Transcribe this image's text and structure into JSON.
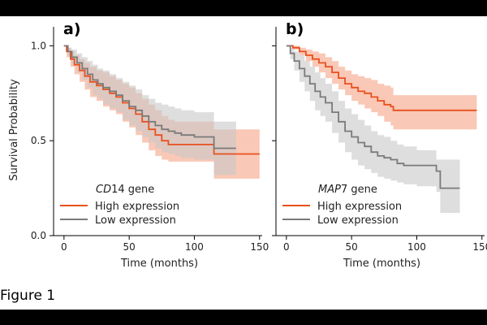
{
  "figure": {
    "caption": "Figure 1"
  },
  "colors": {
    "high": "#e8501e",
    "low": "#7a7a7a",
    "high_band": "#f7a485",
    "low_band": "#c8c8c8"
  },
  "chart_data": [
    {
      "type": "line",
      "panel_label": "a)",
      "title": "",
      "xlabel": "Time (months)",
      "ylabel": "Survival Probability",
      "xlim": [
        -8,
        152
      ],
      "ylim": [
        0,
        1.1
      ],
      "xticks": [
        0,
        50,
        100,
        150
      ],
      "yticks": [
        0.0,
        0.5,
        1.0
      ],
      "ytick_labels": [
        "0.0",
        "0.5",
        "1.0"
      ],
      "legend": {
        "title_italic": "CD",
        "title_rest": "14 gene",
        "position": "lower-left",
        "entries": [
          "High expression",
          "Low expression"
        ]
      },
      "series": [
        {
          "name": "High expression",
          "x": [
            0,
            2,
            5,
            8,
            12,
            16,
            20,
            25,
            30,
            35,
            40,
            45,
            50,
            55,
            60,
            65,
            70,
            75,
            80,
            85,
            90,
            100,
            110,
            115,
            120,
            130,
            150
          ],
          "y": [
            1.0,
            0.97,
            0.93,
            0.9,
            0.87,
            0.84,
            0.81,
            0.79,
            0.77,
            0.75,
            0.73,
            0.7,
            0.67,
            0.64,
            0.6,
            0.56,
            0.53,
            0.5,
            0.48,
            0.48,
            0.48,
            0.48,
            0.48,
            0.43,
            0.43,
            0.43,
            0.43
          ],
          "upper": [
            1.0,
            0.99,
            0.97,
            0.95,
            0.93,
            0.91,
            0.89,
            0.87,
            0.86,
            0.84,
            0.82,
            0.8,
            0.78,
            0.75,
            0.72,
            0.69,
            0.66,
            0.63,
            0.61,
            0.6,
            0.6,
            0.6,
            0.6,
            0.56,
            0.56,
            0.56,
            0.56
          ],
          "lower": [
            1.0,
            0.94,
            0.89,
            0.85,
            0.81,
            0.77,
            0.73,
            0.71,
            0.68,
            0.66,
            0.64,
            0.6,
            0.57,
            0.53,
            0.49,
            0.45,
            0.42,
            0.4,
            0.39,
            0.39,
            0.39,
            0.39,
            0.39,
            0.3,
            0.3,
            0.3,
            0.3
          ]
        },
        {
          "name": "Low expression",
          "x": [
            0,
            3,
            6,
            10,
            14,
            18,
            22,
            26,
            30,
            35,
            40,
            45,
            50,
            55,
            60,
            65,
            70,
            75,
            80,
            85,
            90,
            100,
            110,
            115,
            120,
            125,
            132
          ],
          "y": [
            1.0,
            0.97,
            0.94,
            0.91,
            0.88,
            0.85,
            0.82,
            0.8,
            0.78,
            0.76,
            0.74,
            0.71,
            0.68,
            0.66,
            0.63,
            0.6,
            0.58,
            0.56,
            0.55,
            0.54,
            0.53,
            0.52,
            0.52,
            0.46,
            0.46,
            0.46,
            0.46
          ],
          "upper": [
            1.0,
            0.99,
            0.98,
            0.96,
            0.94,
            0.92,
            0.9,
            0.88,
            0.87,
            0.85,
            0.83,
            0.81,
            0.79,
            0.77,
            0.74,
            0.72,
            0.7,
            0.69,
            0.68,
            0.67,
            0.66,
            0.65,
            0.65,
            0.6,
            0.6,
            0.6,
            0.6
          ],
          "lower": [
            1.0,
            0.94,
            0.9,
            0.86,
            0.82,
            0.78,
            0.74,
            0.72,
            0.69,
            0.67,
            0.65,
            0.61,
            0.58,
            0.55,
            0.52,
            0.49,
            0.46,
            0.44,
            0.43,
            0.42,
            0.41,
            0.4,
            0.4,
            0.32,
            0.32,
            0.32,
            0.32
          ]
        }
      ]
    },
    {
      "type": "line",
      "panel_label": "b)",
      "title": "",
      "xlabel": "Time (months)",
      "ylabel": "",
      "xlim": [
        -8,
        152
      ],
      "ylim": [
        0,
        1.1
      ],
      "xticks": [
        0,
        50,
        100,
        150
      ],
      "yticks": [
        0.0,
        0.5,
        1.0
      ],
      "ytick_labels": [
        "",
        "",
        ""
      ],
      "legend": {
        "title_italic": "MAP",
        "title_rest": "7 gene",
        "position": "lower-left",
        "entries": [
          "High expression",
          "Low expression"
        ]
      },
      "series": [
        {
          "name": "High expression",
          "x": [
            0,
            5,
            10,
            15,
            20,
            25,
            30,
            35,
            40,
            45,
            50,
            55,
            60,
            65,
            70,
            75,
            80,
            82,
            90,
            100,
            120,
            146
          ],
          "y": [
            1.0,
            0.99,
            0.97,
            0.95,
            0.93,
            0.91,
            0.89,
            0.86,
            0.83,
            0.8,
            0.78,
            0.76,
            0.75,
            0.73,
            0.71,
            0.69,
            0.68,
            0.66,
            0.66,
            0.66,
            0.66,
            0.66
          ],
          "upper": [
            1.0,
            1.0,
            0.99,
            0.98,
            0.97,
            0.96,
            0.94,
            0.92,
            0.89,
            0.87,
            0.85,
            0.84,
            0.83,
            0.82,
            0.8,
            0.79,
            0.78,
            0.74,
            0.74,
            0.74,
            0.74,
            0.74
          ],
          "lower": [
            1.0,
            0.98,
            0.95,
            0.92,
            0.89,
            0.86,
            0.83,
            0.8,
            0.77,
            0.74,
            0.71,
            0.69,
            0.67,
            0.65,
            0.63,
            0.6,
            0.58,
            0.56,
            0.56,
            0.56,
            0.56,
            0.56
          ]
        },
        {
          "name": "Low expression",
          "x": [
            0,
            3,
            6,
            10,
            14,
            18,
            22,
            26,
            30,
            35,
            40,
            45,
            50,
            55,
            60,
            65,
            70,
            75,
            80,
            85,
            90,
            100,
            110,
            115,
            118,
            133
          ],
          "y": [
            1.0,
            0.96,
            0.92,
            0.88,
            0.84,
            0.8,
            0.76,
            0.73,
            0.7,
            0.65,
            0.6,
            0.55,
            0.52,
            0.49,
            0.47,
            0.44,
            0.42,
            0.41,
            0.4,
            0.38,
            0.37,
            0.37,
            0.37,
            0.34,
            0.25,
            0.25
          ],
          "upper": [
            1.0,
            0.99,
            0.97,
            0.95,
            0.92,
            0.89,
            0.86,
            0.83,
            0.8,
            0.76,
            0.71,
            0.67,
            0.64,
            0.61,
            0.58,
            0.55,
            0.53,
            0.52,
            0.5,
            0.48,
            0.47,
            0.45,
            0.45,
            0.4,
            0.4,
            0.4
          ],
          "lower": [
            1.0,
            0.93,
            0.87,
            0.81,
            0.76,
            0.71,
            0.66,
            0.63,
            0.6,
            0.54,
            0.49,
            0.44,
            0.4,
            0.37,
            0.35,
            0.33,
            0.31,
            0.3,
            0.29,
            0.28,
            0.27,
            0.26,
            0.26,
            0.23,
            0.12,
            0.12
          ]
        }
      ]
    }
  ]
}
